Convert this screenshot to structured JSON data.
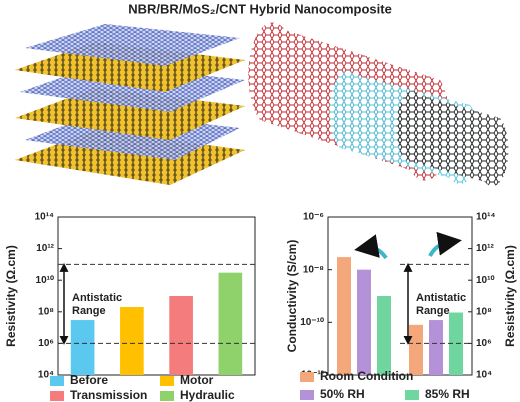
{
  "title": "NBR/BR/MoS₂/CNT Hybrid Nanocomposite",
  "chart_data": [
    {
      "type": "bar",
      "categories": [
        "Before",
        "Motor",
        "Transmission",
        "Hydraulic"
      ],
      "values": [
        30000000,
        200000000,
        1000000000,
        30000000000
      ],
      "colors": [
        "#5bc8f0",
        "#ffc000",
        "#f47c7c",
        "#8fd16a"
      ],
      "ylabel": "Resistivity (Ω.cm)",
      "log_y": true,
      "ylim": [
        10000,
        100000000000000
      ],
      "yticks": [
        {
          "value": 10000,
          "label": "10⁴"
        },
        {
          "value": 1000000,
          "label": "10⁶"
        },
        {
          "value": 100000000,
          "label": "10⁸"
        },
        {
          "value": 10000000000,
          "label": "10¹⁰"
        },
        {
          "value": 1000000000000,
          "label": "10¹²"
        },
        {
          "value": 100000000000000,
          "label": "10¹⁴"
        }
      ],
      "ref_lines": [
        1000000,
        100000000000
      ],
      "annotation": "Antistatic Range"
    },
    {
      "type": "bar",
      "categories": [
        "Room Condition",
        "50% RH",
        "85% RH"
      ],
      "colors": [
        "#f4a77a",
        "#b592d8",
        "#6fd6a0"
      ],
      "series": [
        {
          "values": [
            3e-08,
            1e-08,
            1e-09
          ]
        },
        {
          "values": [
            15000000,
            30000000,
            90000000
          ],
          "axis": "y2"
        }
      ],
      "ylabel": "Conductivity (S/cm)",
      "y2label": "Resistivity (Ω.cm)",
      "log_y": true,
      "ylim": [
        1e-12,
        1e-06
      ],
      "yticks": [
        {
          "value": 1e-12,
          "label": "10⁻¹²"
        },
        {
          "value": 1e-10,
          "label": "10⁻¹⁰"
        },
        {
          "value": 1e-08,
          "label": "10⁻⁸"
        },
        {
          "value": 1e-06,
          "label": "10⁻⁶"
        }
      ],
      "y2lim": [
        10000,
        100000000000000
      ],
      "y2ticks": [
        {
          "value": 10000,
          "label": "10⁴"
        },
        {
          "value": 1000000,
          "label": "10⁶"
        },
        {
          "value": 100000000,
          "label": "10⁸"
        },
        {
          "value": 10000000000,
          "label": "10¹⁰"
        },
        {
          "value": 1000000000000,
          "label": "10¹²"
        },
        {
          "value": 100000000000000,
          "label": "10¹⁴"
        }
      ],
      "ref_lines": [
        1000000,
        100000000000
      ],
      "ref_axis": "y2",
      "annotation": "Antistatic Range"
    }
  ]
}
